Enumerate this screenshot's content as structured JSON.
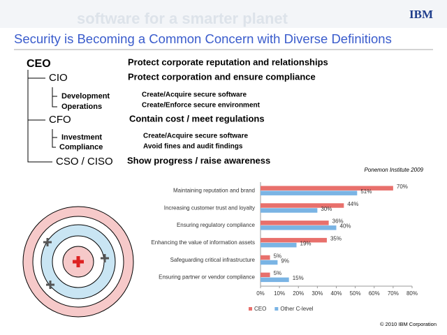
{
  "header": {
    "banner": "software for a smarter planet",
    "logo": "IBM",
    "title": "Security is Becoming a Common Concern with Diverse Definitions"
  },
  "roles": [
    {
      "role": "CEO",
      "concern": "Protect corporate reputation and relationships"
    },
    {
      "role": "CIO",
      "concern": "Protect corporation and ensure compliance",
      "subroles": [
        {
          "role": "Development",
          "concern": "Create/Acquire secure software"
        },
        {
          "role": "Operations",
          "concern": "Create/Enforce secure environment"
        }
      ]
    },
    {
      "role": "CFO",
      "concern": "Contain cost / meet regulations",
      "subroles": [
        {
          "role": "Investment",
          "concern": "Create/Acquire secure software"
        },
        {
          "role": "Compliance",
          "concern": "Avoid fines and audit findings"
        }
      ]
    },
    {
      "role": "CSO / CISO",
      "concern": "Show progress / raise awareness"
    }
  ],
  "source": "Ponemon Institute 2009",
  "footer": "© 2010 IBM Corporation",
  "chart_data": {
    "type": "hbar",
    "categories": [
      "Maintaining reputation and brand",
      "Increasing customer trust and loyalty",
      "Ensuring regulatory compliance",
      "Enhancing the value of information assets",
      "Safeguarding critical infrastructure",
      "Ensuring partner or vendor compliance"
    ],
    "series": [
      {
        "name": "CEO",
        "color": "#e8706c",
        "values": [
          70,
          44,
          36,
          35,
          5,
          5
        ],
        "value_labels": [
          "70%",
          "44%",
          "36%",
          "35%",
          "5%",
          "5%"
        ]
      },
      {
        "name": "Other C-level",
        "color": "#7ab4e4",
        "values": [
          51,
          30,
          40,
          19,
          9,
          15
        ],
        "value_labels": [
          "51%",
          "30%",
          "40%",
          "19%",
          "9%",
          "15%"
        ]
      }
    ],
    "xlim": [
      0,
      80
    ],
    "xticks": [
      {
        "value": 0,
        "label": "0%"
      },
      {
        "value": 10,
        "label": "10%"
      },
      {
        "value": 20,
        "label": "20%"
      },
      {
        "value": 30,
        "label": "30%"
      },
      {
        "value": 40,
        "label": "40%"
      },
      {
        "value": 50,
        "label": "50%"
      },
      {
        "value": 60,
        "label": "60%"
      },
      {
        "value": 70,
        "label": "70%"
      },
      {
        "value": 80,
        "label": "80%"
      }
    ],
    "legend": "bottom"
  }
}
